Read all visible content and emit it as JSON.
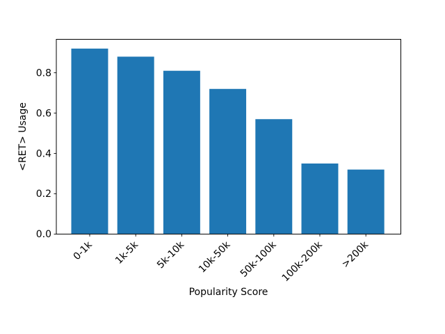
{
  "chart_data": {
    "type": "bar",
    "title": "",
    "xlabel": "Popularity Score",
    "ylabel": "<RET> Usage",
    "categories": [
      "0-1k",
      "1k-5k",
      "5k-10k",
      "10k-50k",
      "50k-100k",
      "100k-200k",
      ">200k"
    ],
    "values": [
      0.92,
      0.88,
      0.81,
      0.72,
      0.57,
      0.35,
      0.32
    ],
    "series": [
      {
        "name": "<RET> Usage",
        "values": [
          0.92,
          0.88,
          0.81,
          0.72,
          0.57,
          0.35,
          0.32
        ]
      }
    ],
    "yticks": [
      0.0,
      0.2,
      0.4,
      0.6,
      0.8
    ],
    "ytick_labels": [
      "0.0",
      "0.2",
      "0.4",
      "0.6",
      "0.8"
    ],
    "ylim": [
      0,
      0.966
    ],
    "bar_color": "#1f77b4",
    "bar_width": 0.8,
    "x_tick_rotation": 45,
    "grid": false,
    "legend_position": "none",
    "axis_color": "#000000",
    "background_color": "#ffffff"
  }
}
